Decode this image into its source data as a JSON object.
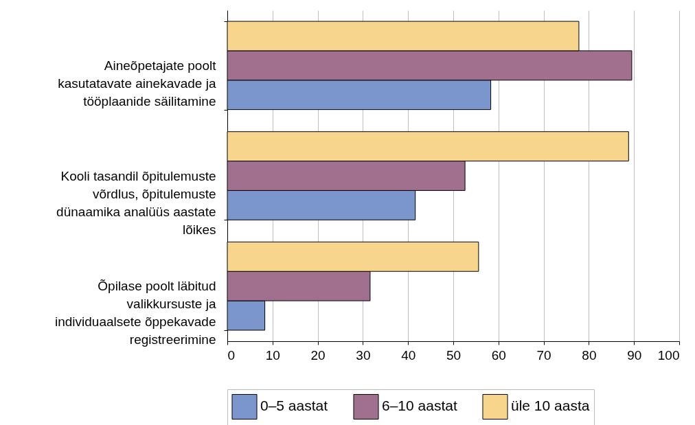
{
  "chart_data": {
    "type": "bar",
    "orientation": "horizontal",
    "categories": [
      "Aineõpetajate poolt kasutatavate ainekavade ja tööplaanide säilitamine",
      "Kooli tasandil õpitulemuste võrdlus, õpitulemuste dünaamika analüüs aastate lõikes",
      "Õpilase poolt läbitud valikkursuste ja individuaalsete õppekavade registreerimine"
    ],
    "series": [
      {
        "name": "0–5 aastat",
        "color": "#7b96cc",
        "values": [
          58.3,
          41.6,
          8.3
        ]
      },
      {
        "name": "6–10 aastat",
        "color": "#a0708e",
        "values": [
          89.5,
          52.6,
          31.6
        ]
      },
      {
        "name": "üle 10 aasta",
        "color": "#f8d58c",
        "values": [
          77.8,
          88.8,
          55.6
        ]
      }
    ],
    "xlim": [
      0,
      100
    ],
    "xticks": [
      0,
      10,
      20,
      30,
      40,
      50,
      60,
      70,
      80,
      90,
      100
    ],
    "grid": "x",
    "legend": "bottom"
  }
}
